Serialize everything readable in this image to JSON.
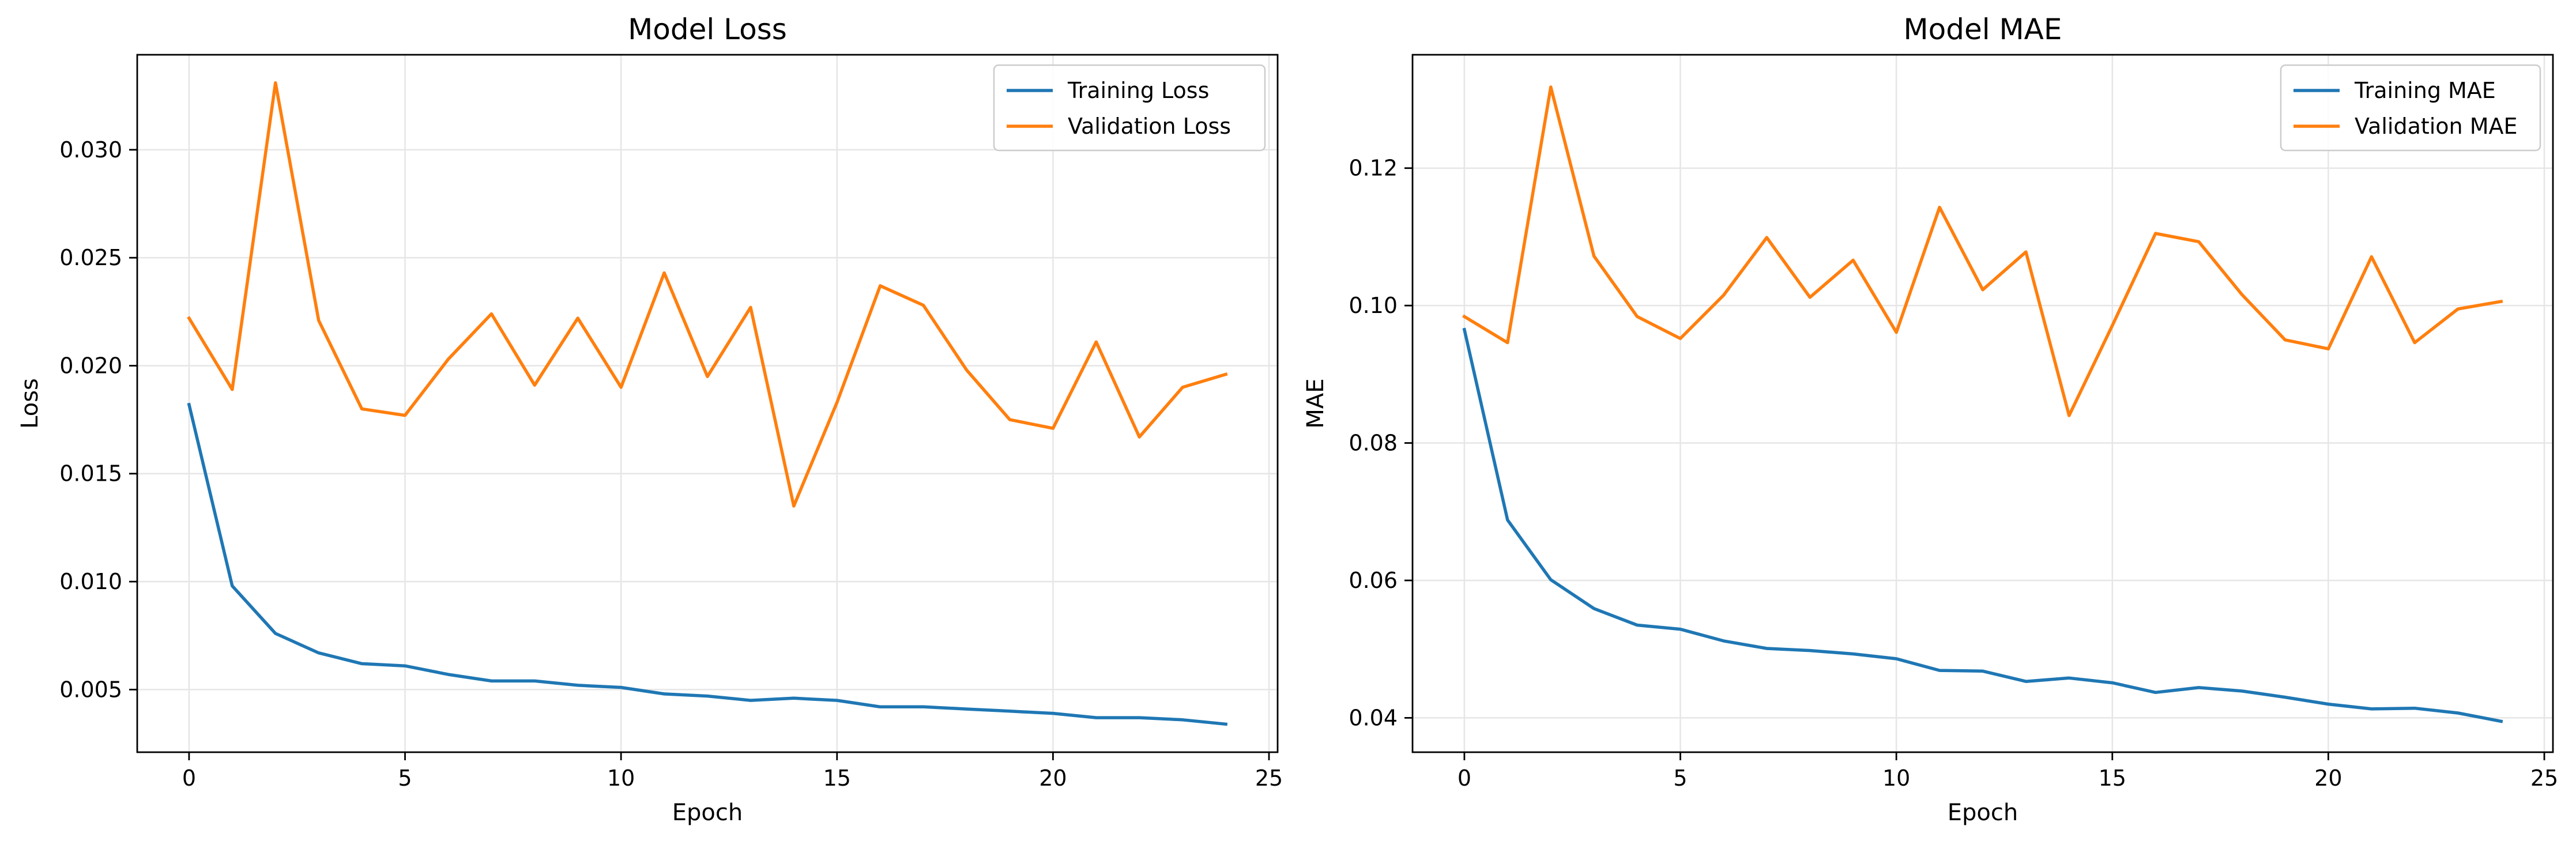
{
  "chart_data": [
    {
      "type": "line",
      "title": "Model Loss",
      "xlabel": "Epoch",
      "ylabel": "Loss",
      "xlim": [
        -1.2,
        25.2
      ],
      "ylim": [
        0.0021,
        0.0344
      ],
      "xticks": [
        0,
        5,
        10,
        15,
        20,
        25
      ],
      "yticks": [
        0.005,
        0.01,
        0.015,
        0.02,
        0.025,
        0.03
      ],
      "ytick_labels": [
        "0.005",
        "0.010",
        "0.015",
        "0.020",
        "0.025",
        "0.030"
      ],
      "grid": true,
      "legend_position": "top-right",
      "x": [
        0,
        1,
        2,
        3,
        4,
        5,
        6,
        7,
        8,
        9,
        10,
        11,
        12,
        13,
        14,
        15,
        16,
        17,
        18,
        19,
        20,
        21,
        22,
        23,
        24
      ],
      "series": [
        {
          "name": "Training Loss",
          "color": "#1f77b4",
          "values": [
            0.0182,
            0.0098,
            0.0076,
            0.0067,
            0.0062,
            0.0061,
            0.0057,
            0.0054,
            0.0054,
            0.0052,
            0.0051,
            0.0048,
            0.0047,
            0.0045,
            0.0046,
            0.0045,
            0.0042,
            0.0042,
            0.0041,
            0.004,
            0.0039,
            0.0037,
            0.0037,
            0.0036,
            0.0034
          ]
        },
        {
          "name": "Validation Loss",
          "color": "#ff7f0e",
          "values": [
            0.0222,
            0.0189,
            0.0331,
            0.0221,
            0.018,
            0.0177,
            0.0203,
            0.0224,
            0.0191,
            0.0222,
            0.019,
            0.0243,
            0.0195,
            0.0227,
            0.0135,
            0.0183,
            0.0237,
            0.0228,
            0.0198,
            0.0175,
            0.0171,
            0.0211,
            0.0167,
            0.019,
            0.0196
          ]
        }
      ]
    },
    {
      "type": "line",
      "title": "Model MAE",
      "xlabel": "Epoch",
      "ylabel": "MAE",
      "xlim": [
        -1.2,
        25.2
      ],
      "ylim": [
        0.035,
        0.1365
      ],
      "xticks": [
        0,
        5,
        10,
        15,
        20,
        25
      ],
      "yticks": [
        0.04,
        0.06,
        0.08,
        0.1,
        0.12
      ],
      "ytick_labels": [
        "0.04",
        "0.06",
        "0.08",
        "0.10",
        "0.12"
      ],
      "grid": true,
      "legend_position": "top-right",
      "x": [
        0,
        1,
        2,
        3,
        4,
        5,
        6,
        7,
        8,
        9,
        10,
        11,
        12,
        13,
        14,
        15,
        16,
        17,
        18,
        19,
        20,
        21,
        22,
        23,
        24
      ],
      "series": [
        {
          "name": "Training MAE",
          "color": "#1f77b4",
          "values": [
            0.0965,
            0.0688,
            0.0601,
            0.0559,
            0.0535,
            0.0529,
            0.0512,
            0.0501,
            0.0498,
            0.0493,
            0.0486,
            0.0469,
            0.0468,
            0.0453,
            0.0458,
            0.0451,
            0.0437,
            0.0444,
            0.0439,
            0.043,
            0.042,
            0.0413,
            0.0414,
            0.0407,
            0.0395
          ]
        },
        {
          "name": "Validation MAE",
          "color": "#ff7f0e",
          "values": [
            0.0984,
            0.0946,
            0.1318,
            0.1072,
            0.0984,
            0.0952,
            0.1015,
            0.1099,
            0.1012,
            0.1066,
            0.0961,
            0.1143,
            0.1023,
            0.1078,
            0.084,
            0.0971,
            0.1105,
            0.1093,
            0.1016,
            0.095,
            0.0937,
            0.1071,
            0.0946,
            0.0995,
            0.1006
          ]
        }
      ]
    }
  ]
}
